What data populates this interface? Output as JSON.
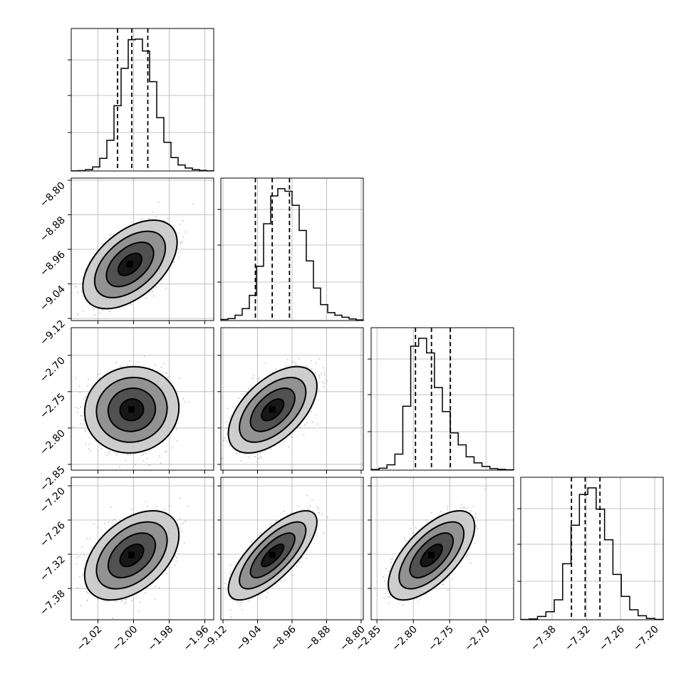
{
  "chart_data": {
    "type": "corner",
    "grid": true,
    "parameters": [
      {
        "range": [
          -2.035,
          -1.955
        ],
        "ticks": [
          -2.02,
          -2.0,
          -1.98,
          -1.96
        ],
        "tick_labels": [
          "−2.02",
          "−2.00",
          "−1.98",
          "−1.96"
        ],
        "quantiles": [
          -2.009,
          -2.001,
          -1.992
        ],
        "hist_edges": [
          -2.035,
          -1.955
        ],
        "hist_counts": [
          1,
          3,
          10,
          30,
          95,
          230,
          490,
          770,
          985,
          990,
          900,
          670,
          400,
          215,
          100,
          45,
          22,
          10,
          4,
          1
        ]
      },
      {
        "range": [
          -9.125,
          -8.795
        ],
        "ticks": [
          -9.12,
          -9.04,
          -8.96,
          -8.88,
          -8.8
        ],
        "tick_labels": [
          "−9.12",
          "−9.04",
          "−8.96",
          "−8.88",
          "−8.80"
        ],
        "quantiles": [
          -9.045,
          -9.006,
          -8.966
        ],
        "hist_edges": [
          -9.125,
          -8.795
        ],
        "hist_counts": [
          8,
          15,
          40,
          90,
          190,
          410,
          730,
          940,
          995,
          975,
          870,
          680,
          450,
          245,
          120,
          60,
          40,
          25,
          12,
          5
        ]
      },
      {
        "range": [
          -2.858,
          -2.662
        ],
        "ticks": [
          -2.85,
          -2.8,
          -2.75,
          -2.7
        ],
        "tick_labels": [
          "−2.85",
          "−2.80",
          "−2.75",
          "−2.70"
        ],
        "quantiles": [
          -2.797,
          -2.775,
          -2.749
        ],
        "hist_edges": [
          -2.858,
          -2.662
        ],
        "hist_counts": [
          5,
          15,
          40,
          120,
          480,
          930,
          990,
          880,
          620,
          440,
          280,
          190,
          100,
          55,
          28,
          12,
          6,
          3
        ]
      },
      {
        "range": [
          -7.435,
          -7.185
        ],
        "ticks": [
          -7.38,
          -7.32,
          -7.26,
          -7.2
        ],
        "tick_labels": [
          "−7.38",
          "−7.32",
          "−7.26",
          "−7.20"
        ],
        "quantiles": [
          -7.346,
          -7.322,
          -7.296
        ],
        "hist_edges": [
          -7.435,
          -7.185
        ],
        "hist_counts": [
          2,
          6,
          25,
          60,
          150,
          420,
          710,
          940,
          990,
          830,
          600,
          340,
          175,
          75,
          30,
          10,
          3
        ]
      }
    ],
    "pairs": [
      {
        "row": 1,
        "col": 0,
        "mean": [
          -2.002,
          -8.995
        ],
        "std": [
          0.0098,
          0.038
        ],
        "rho": 0.5,
        "point_color": "#7f7f7f"
      },
      {
        "row": 2,
        "col": 0,
        "mean": [
          -2.001,
          -2.775
        ],
        "std": [
          0.0098,
          0.022
        ],
        "rho": 0.05,
        "point_color": "#7f7f7f"
      },
      {
        "row": 2,
        "col": 1,
        "mean": [
          -9.005,
          -2.775
        ],
        "std": [
          0.038,
          0.022
        ],
        "rho": 0.55,
        "point_color": "#7f7f7f"
      },
      {
        "row": 3,
        "col": 0,
        "mean": [
          -2.001,
          -7.322
        ],
        "std": [
          0.0098,
          0.029
        ],
        "rho": 0.45,
        "point_color": "#7f7f7f"
      },
      {
        "row": 3,
        "col": 1,
        "mean": [
          -9.005,
          -7.322
        ],
        "std": [
          0.038,
          0.029
        ],
        "rho": 0.75,
        "point_color": "#7f7f7f"
      },
      {
        "row": 3,
        "col": 2,
        "mean": [
          -2.775,
          -7.322
        ],
        "std": [
          0.022,
          0.029
        ],
        "rho": 0.65,
        "point_color": "#7f7f7f"
      }
    ],
    "contour_levels_sigma": [
      0.5,
      1.0,
      1.5,
      2.0
    ]
  }
}
